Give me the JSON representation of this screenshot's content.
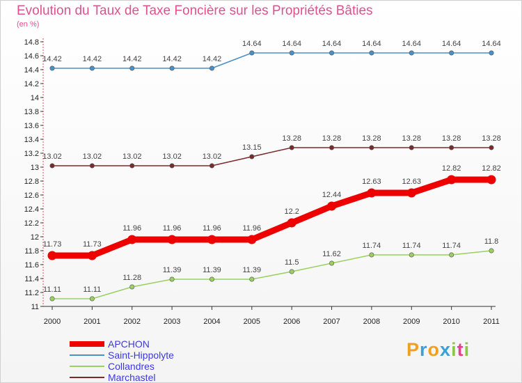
{
  "title": "Evolution du Taux de Taxe Foncière sur les Propriétés Bâties",
  "unit_label": "(en %)",
  "brand": {
    "letters": [
      "P",
      "r",
      "o",
      "x",
      "i",
      "t",
      "i"
    ],
    "colors": [
      "#f0a020",
      "#3aa0d8",
      "#f0a020",
      "#3aa0d8",
      "#8cc840",
      "#e84090",
      "#8cc840"
    ]
  },
  "chart_data": {
    "type": "line",
    "x": [
      "2000",
      "2001",
      "2002",
      "2003",
      "2004",
      "2005",
      "2006",
      "2007",
      "2008",
      "2009",
      "2010",
      "2011"
    ],
    "ylim": [
      11,
      14.8
    ],
    "yticks": [
      "11",
      "11.2",
      "11.4",
      "11.6",
      "11.8",
      "12",
      "12.2",
      "12.4",
      "12.6",
      "12.8",
      "13",
      "13.2",
      "13.4",
      "13.6",
      "13.8",
      "14",
      "14.2",
      "14.4",
      "14.6",
      "14.8"
    ],
    "grid": false,
    "legend_position": "bottom-left",
    "series": [
      {
        "name": "Saint-Hippolyte",
        "color": "#4a90c8",
        "emphasis": false,
        "values": [
          14.42,
          14.42,
          14.42,
          14.42,
          14.42,
          14.64,
          14.64,
          14.64,
          14.64,
          14.64,
          14.64,
          14.64
        ],
        "labels": [
          "14.42",
          "14.42",
          "14.42",
          "14.42",
          "14.42",
          "14.64",
          "14.64",
          "14.64",
          "14.64",
          "14.64",
          "14.64",
          "14.64"
        ]
      },
      {
        "name": "Marchastel",
        "color": "#7a2a2a",
        "emphasis": false,
        "values": [
          13.02,
          13.02,
          13.02,
          13.02,
          13.02,
          13.15,
          13.28,
          13.28,
          13.28,
          13.28,
          13.28,
          13.28
        ],
        "labels": [
          "13.02",
          "13.02",
          "13.02",
          "13.02",
          "13.02",
          "13.15",
          "13.28",
          "13.28",
          "13.28",
          "13.28",
          "13.28",
          "13.28"
        ]
      },
      {
        "name": "APCHON",
        "color": "#ee0000",
        "emphasis": true,
        "values": [
          11.73,
          11.73,
          11.96,
          11.96,
          11.96,
          11.96,
          12.2,
          12.44,
          12.63,
          12.63,
          12.82,
          12.82
        ],
        "labels": [
          "11.73",
          "11.73",
          "11.96",
          "11.96",
          "11.96",
          "11.96",
          "12.2",
          "12.44",
          "12.63",
          "12.63",
          "12.82",
          "12.82"
        ]
      },
      {
        "name": "Collandres",
        "color": "#99d060",
        "emphasis": false,
        "values": [
          11.11,
          11.11,
          11.28,
          11.39,
          11.39,
          11.39,
          11.5,
          11.62,
          11.74,
          11.74,
          11.74,
          11.8
        ],
        "labels": [
          "11.11",
          "11.11",
          "11.28",
          "11.39",
          "11.39",
          "11.39",
          "11.5",
          "11.62",
          "11.74",
          "11.74",
          "11.74",
          "11.8"
        ]
      }
    ],
    "legend": [
      "APCHON",
      "Saint-Hippolyte",
      "Collandres",
      "Marchastel"
    ]
  }
}
